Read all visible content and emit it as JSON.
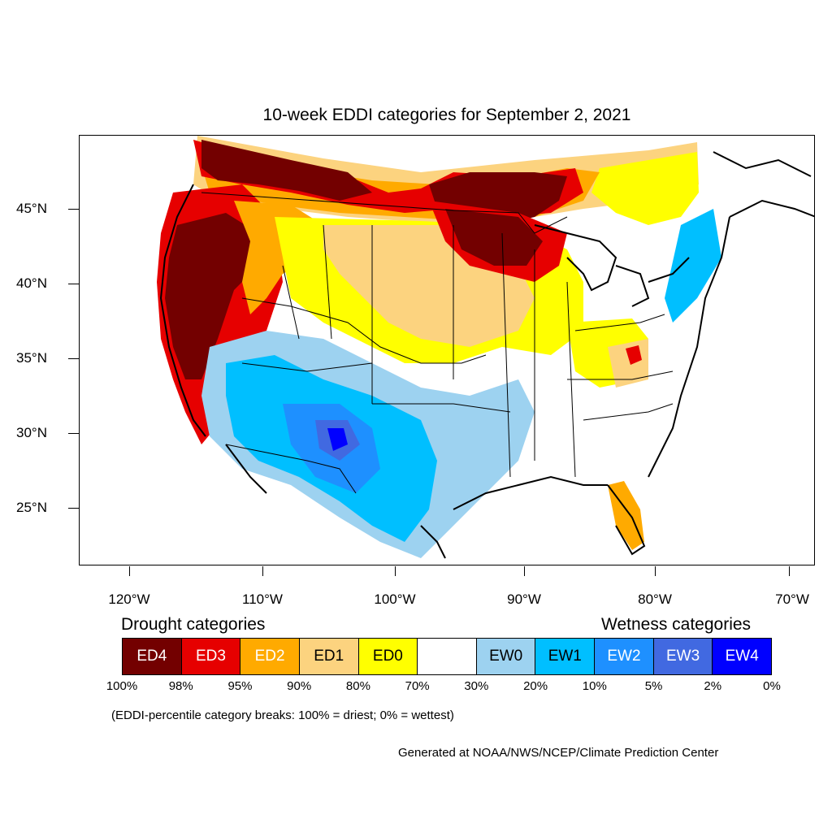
{
  "title": "10-week EDDI categories for September 2, 2021",
  "lat_labels": [
    "45°N",
    "40°N",
    "35°N",
    "30°N",
    "25°N"
  ],
  "lon_labels": [
    "120°W",
    "110°W",
    "100°W",
    "90°W",
    "80°W",
    "70°W"
  ],
  "legend": {
    "drought_heading": "Drought categories",
    "wetness_heading": "Wetness categories",
    "categories": [
      {
        "label": "ED4",
        "color": "#730000",
        "text_color": "#ffffff"
      },
      {
        "label": "ED3",
        "color": "#e60000",
        "text_color": "#ffffff"
      },
      {
        "label": "ED2",
        "color": "#ffaa00",
        "text_color": "#ffffff"
      },
      {
        "label": "ED1",
        "color": "#fcd37f",
        "text_color": "#000000"
      },
      {
        "label": "ED0",
        "color": "#ffff00",
        "text_color": "#000000"
      },
      {
        "label": "",
        "color": "#ffffff",
        "text_color": "#000000"
      },
      {
        "label": "EW0",
        "color": "#9dd2f0",
        "text_color": "#000000"
      },
      {
        "label": "EW1",
        "color": "#00bfff",
        "text_color": "#000000"
      },
      {
        "label": "EW2",
        "color": "#1e90ff",
        "text_color": "#ffffff"
      },
      {
        "label": "EW3",
        "color": "#4169e1",
        "text_color": "#ffffff"
      },
      {
        "label": "EW4",
        "color": "#0000ff",
        "text_color": "#ffffff"
      }
    ],
    "breaks": [
      "100%",
      "98%",
      "95%",
      "90%",
      "80%",
      "70%",
      "30%",
      "20%",
      "10%",
      "5%",
      "2%",
      "0%"
    ]
  },
  "note": "(EDDI-percentile category breaks: 100% = driest; 0% = wettest)",
  "credit": "Generated at NOAA/NWS/NCEP/Climate Prediction Center"
}
